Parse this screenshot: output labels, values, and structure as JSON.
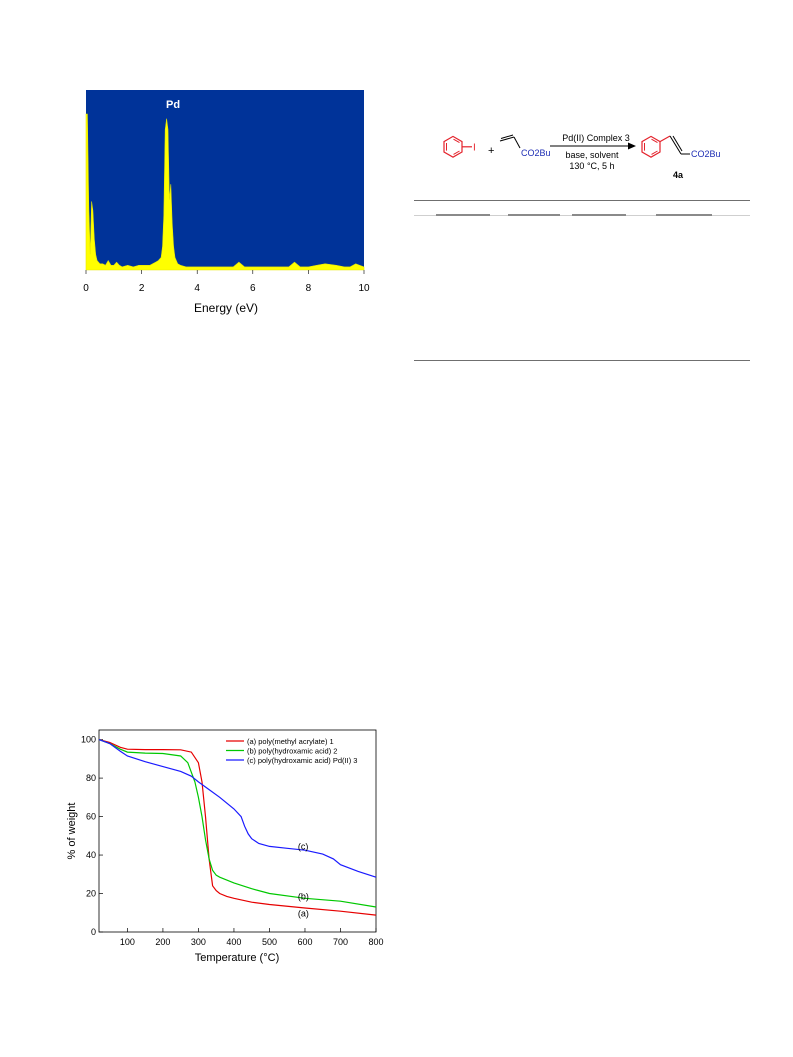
{
  "edx_chart": {
    "chart_data": {
      "type": "line",
      "xlabel": "Energy (eV)",
      "ylabel": "",
      "title": "",
      "xlim": [
        0,
        10
      ],
      "x_ticks": [
        "0",
        "2",
        "4",
        "6",
        "8",
        "10"
      ],
      "grid": false,
      "annotations": [
        {
          "text": "Pd",
          "x": 2.9
        }
      ],
      "colors": {
        "background": "#003399",
        "trace": "#ffff00"
      },
      "series": [
        {
          "x": [
            0,
            0.05,
            0.1,
            0.15,
            0.2,
            0.25,
            0.3,
            0.35,
            0.4,
            0.5,
            0.6,
            0.7,
            0.8,
            0.9,
            1.0,
            1.1,
            1.2,
            1.3,
            1.5,
            1.7,
            1.9,
            2.1,
            2.3,
            2.5,
            2.6,
            2.7,
            2.75,
            2.8,
            2.85,
            2.9,
            2.95,
            3.0,
            3.05,
            3.1,
            3.15,
            3.2,
            3.3,
            3.4,
            3.6,
            4.0,
            4.5,
            5.0,
            5.3,
            5.5,
            5.7,
            6.0,
            6.5,
            7.0,
            7.3,
            7.5,
            7.7,
            8.0,
            8.3,
            8.6,
            9.0,
            9.3,
            9.5,
            9.7,
            10.0
          ],
          "values": [
            100,
            100,
            40,
            10,
            44,
            38,
            20,
            10,
            6,
            4,
            4,
            3,
            6,
            3,
            3,
            5,
            3,
            2,
            3,
            2,
            3,
            3,
            3,
            5,
            6,
            8,
            15,
            35,
            90,
            97,
            90,
            45,
            55,
            30,
            15,
            8,
            4,
            3,
            2,
            2,
            2,
            2,
            2,
            5,
            2,
            2,
            2,
            2,
            2,
            5,
            2,
            2,
            3,
            4,
            3,
            2,
            2,
            4,
            2
          ]
        }
      ]
    }
  },
  "scheme": {
    "reactant2_label": "CO2Bu",
    "catalyst_label": "Pd(II) Complex 3",
    "conditions_line1": "base, solvent",
    "conditions_line2": "130 °C, 5 h",
    "product_label": "CO2Bu",
    "product_id": "4a",
    "colors": {
      "aryl_ring": "#e4222b",
      "ester": "#1f2fb5"
    }
  },
  "tga_chart": {
    "chart_data": {
      "type": "line",
      "xlabel": "Temperature (°C)",
      "ylabel": "% of weight",
      "title": "",
      "xlim": [
        20,
        800
      ],
      "ylim": [
        0,
        105
      ],
      "x_ticks": [
        100,
        200,
        300,
        400,
        500,
        600,
        700,
        800
      ],
      "y_ticks": [
        0,
        20,
        40,
        60,
        80,
        100
      ],
      "grid": false,
      "legend_position": "top-right",
      "series": [
        {
          "name": "(a) poly(methyl acrylate) 1",
          "curve_label": "(a)",
          "color": "#e60000",
          "x": [
            20,
            50,
            80,
            100,
            150,
            200,
            250,
            280,
            300,
            310,
            320,
            330,
            340,
            350,
            360,
            380,
            400,
            450,
            500,
            600,
            700,
            800
          ],
          "values": [
            100,
            98.5,
            96,
            95,
            94.8,
            94.8,
            94.7,
            93.5,
            88,
            78,
            60,
            38,
            24,
            21.5,
            20,
            18.5,
            17.5,
            15.5,
            14.3,
            12.5,
            10.8,
            8.8
          ]
        },
        {
          "name": "(b) poly(hydroxamic acid) 2",
          "curve_label": "(b)",
          "color": "#00c800",
          "x": [
            20,
            50,
            80,
            100,
            150,
            200,
            250,
            270,
            290,
            300,
            310,
            320,
            330,
            340,
            350,
            360,
            380,
            400,
            450,
            500,
            600,
            700,
            800
          ],
          "values": [
            100,
            98,
            95,
            93.5,
            93,
            92.8,
            91.5,
            88,
            78,
            70,
            60,
            48,
            38,
            32,
            29.5,
            28.5,
            27,
            25.5,
            22.5,
            20,
            17.5,
            16,
            13
          ]
        },
        {
          "name": "(c) poly(hydroxamic acid) Pd(II) 3",
          "curve_label": "(c)",
          "color": "#1a1aff",
          "x": [
            20,
            50,
            80,
            100,
            150,
            200,
            250,
            280,
            300,
            330,
            360,
            400,
            420,
            430,
            440,
            450,
            470,
            500,
            550,
            600,
            650,
            680,
            700,
            750,
            800
          ],
          "values": [
            100,
            98,
            94,
            91.5,
            88.5,
            86,
            83.5,
            81,
            78,
            74,
            70,
            64,
            60,
            55,
            51,
            48.5,
            46,
            44.5,
            43.5,
            42.5,
            40.5,
            38,
            35,
            31.5,
            28.5
          ]
        }
      ]
    }
  }
}
